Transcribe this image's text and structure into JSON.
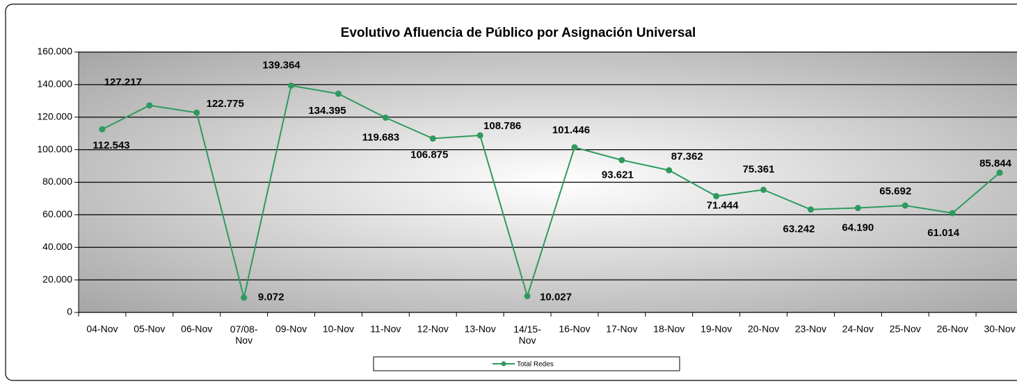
{
  "chart_data": {
    "type": "line",
    "title": "Evolutivo Afluencia de Público por Asignación Universal",
    "categories": [
      "04-Nov",
      "05-Nov",
      "06-Nov",
      "07/08-Nov",
      "09-Nov",
      "10-Nov",
      "11-Nov",
      "12-Nov",
      "13-Nov",
      "14/15-Nov",
      "16-Nov",
      "17-Nov",
      "18-Nov",
      "19-Nov",
      "20-Nov",
      "23-Nov",
      "24-Nov",
      "25-Nov",
      "26-Nov",
      "30-Nov"
    ],
    "series": [
      {
        "name": "Total Redes",
        "color": "#2e9a5e",
        "values": [
          112543,
          127217,
          122775,
          9072,
          139364,
          134395,
          119683,
          106875,
          108786,
          10027,
          101446,
          93621,
          87362,
          71444,
          75361,
          63242,
          64190,
          65692,
          61014,
          85844
        ],
        "value_labels": [
          "112.543",
          "127.217",
          "122.775",
          "9.072",
          "139.364",
          "134.395",
          "119.683",
          "106.875",
          "108.786",
          "10.027",
          "101.446",
          "93.621",
          "87.362",
          "71.444",
          "75.361",
          "63.242",
          "64.190",
          "65.692",
          "61.014",
          "85.844"
        ]
      }
    ],
    "ylim": [
      0,
      160000
    ],
    "yticks": [
      0,
      {
        "value": 20000,
        "label": "20.000"
      },
      {
        "value": 40000,
        "label": "40.000"
      },
      {
        "value": 60000,
        "label": "60.000"
      },
      {
        "value": 80000,
        "label": "80.000"
      },
      {
        "value": 100000,
        "label": "100.000"
      },
      {
        "value": 120000,
        "label": "120.000"
      },
      {
        "value": 140000,
        "label": "140.000"
      },
      {
        "value": 160000,
        "label": "160.000"
      }
    ],
    "grid": true,
    "legend": "bottom"
  }
}
